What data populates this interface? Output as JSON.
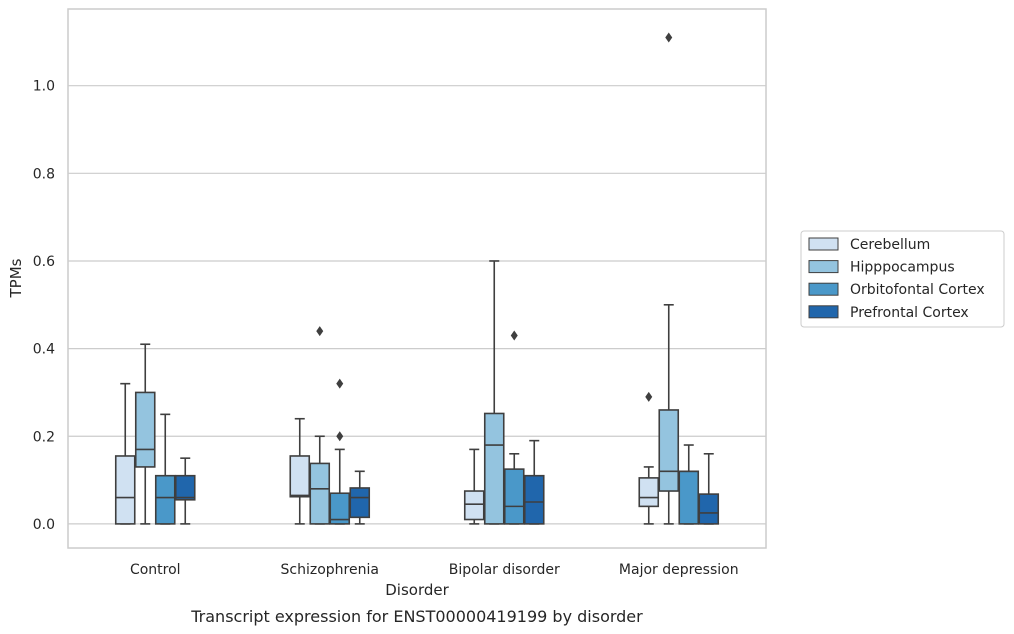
{
  "chart_data": {
    "type": "box",
    "caption": "Transcript expression for ENST00000419199 by disorder",
    "xlabel": "Disorder",
    "ylabel": "TPMs",
    "ylim": [
      -0.055,
      1.175
    ],
    "yticks": [
      0.0,
      0.2,
      0.4,
      0.6,
      0.8,
      1.0
    ],
    "ytick_labels": [
      "0.0",
      "0.2",
      "0.4",
      "0.6",
      "0.8",
      "1.0"
    ],
    "grid": "horizontal",
    "legend_position": "right",
    "categories": [
      "Control",
      "Schizophrenia",
      "Bipolar disorder",
      "Major depression"
    ],
    "series": [
      {
        "name": "Cerebellum",
        "color": "#d0e1f2",
        "boxes": [
          {
            "whisker_low": 0.0,
            "q1": 0.0,
            "median": 0.06,
            "q3": 0.155,
            "whisker_high": 0.32,
            "outliers": []
          },
          {
            "whisker_low": 0.0,
            "q1": 0.062,
            "median": 0.065,
            "q3": 0.155,
            "whisker_high": 0.24,
            "outliers": []
          },
          {
            "whisker_low": 0.0,
            "q1": 0.01,
            "median": 0.045,
            "q3": 0.075,
            "whisker_high": 0.17,
            "outliers": []
          },
          {
            "whisker_low": 0.0,
            "q1": 0.04,
            "median": 0.06,
            "q3": 0.105,
            "whisker_high": 0.13,
            "outliers": [
              0.29
            ]
          }
        ]
      },
      {
        "name": "Hipppocampus",
        "color": "#94c4df",
        "boxes": [
          {
            "whisker_low": 0.0,
            "q1": 0.13,
            "median": 0.17,
            "q3": 0.3,
            "whisker_high": 0.41,
            "outliers": []
          },
          {
            "whisker_low": 0.0,
            "q1": 0.0,
            "median": 0.08,
            "q3": 0.138,
            "whisker_high": 0.2,
            "outliers": [
              0.44
            ]
          },
          {
            "whisker_low": 0.0,
            "q1": 0.0,
            "median": 0.18,
            "q3": 0.252,
            "whisker_high": 0.6,
            "outliers": []
          },
          {
            "whisker_low": 0.0,
            "q1": 0.075,
            "median": 0.12,
            "q3": 0.26,
            "whisker_high": 0.5,
            "outliers": [
              1.11
            ]
          }
        ]
      },
      {
        "name": "Orbitofontal Cortex",
        "color": "#4a98c9",
        "boxes": [
          {
            "whisker_low": 0.0,
            "q1": 0.0,
            "median": 0.06,
            "q3": 0.11,
            "whisker_high": 0.25,
            "outliers": []
          },
          {
            "whisker_low": 0.0,
            "q1": 0.0,
            "median": 0.01,
            "q3": 0.07,
            "whisker_high": 0.17,
            "outliers": [
              0.2,
              0.32
            ]
          },
          {
            "whisker_low": 0.0,
            "q1": 0.0,
            "median": 0.04,
            "q3": 0.125,
            "whisker_high": 0.16,
            "outliers": [
              0.43
            ]
          },
          {
            "whisker_low": 0.0,
            "q1": 0.0,
            "median": 0.12,
            "q3": 0.12,
            "whisker_high": 0.18,
            "outliers": []
          }
        ]
      },
      {
        "name": "Prefrontal Cortex",
        "color": "#2066ac",
        "boxes": [
          {
            "whisker_low": 0.0,
            "q1": 0.055,
            "median": 0.06,
            "q3": 0.11,
            "whisker_high": 0.15,
            "outliers": []
          },
          {
            "whisker_low": 0.0,
            "q1": 0.015,
            "median": 0.06,
            "q3": 0.082,
            "whisker_high": 0.12,
            "outliers": []
          },
          {
            "whisker_low": 0.0,
            "q1": 0.0,
            "median": 0.05,
            "q3": 0.11,
            "whisker_high": 0.19,
            "outliers": []
          },
          {
            "whisker_low": 0.0,
            "q1": 0.0,
            "median": 0.025,
            "q3": 0.068,
            "whisker_high": 0.16,
            "outliers": []
          }
        ]
      }
    ]
  }
}
